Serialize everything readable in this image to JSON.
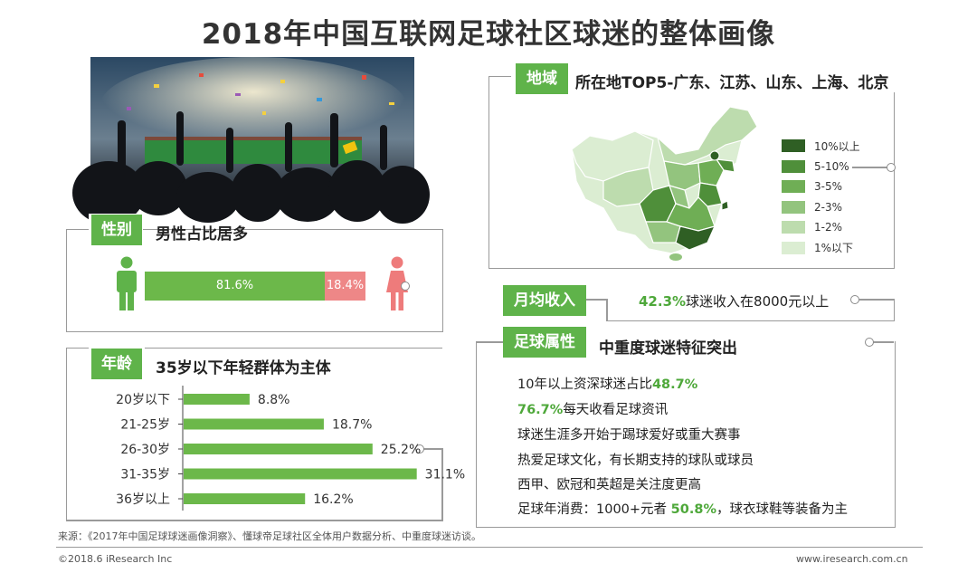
{
  "title": "2018年中国互联网足球社区球迷的整体画像",
  "colors": {
    "accent": "#5fb34a",
    "male_bar": "#6cb84a",
    "female_bar": "#ee8787",
    "highlight": "#4ea83a"
  },
  "gender": {
    "tag": "性别",
    "heading": "男性占比居多",
    "male_label": "81.6%",
    "female_label": "18.4%",
    "male_share": 81.6,
    "female_share": 18.4
  },
  "age": {
    "tag": "年龄",
    "heading": "35岁以下年轻群体为主体"
  },
  "region": {
    "tag": "地域",
    "heading": "所在地TOP5-广东、江苏、山东、上海、北京",
    "legend": [
      {
        "label": "10%以上",
        "color": "#2f5f24"
      },
      {
        "label": "5-10%",
        "color": "#4f8f3a"
      },
      {
        "label": "3-5%",
        "color": "#6fae55"
      },
      {
        "label": "2-3%",
        "color": "#93c47e"
      },
      {
        "label": "1-2%",
        "color": "#bddcae"
      },
      {
        "label": "1%以下",
        "color": "#dbedd2"
      }
    ]
  },
  "income": {
    "tag": "月均收入",
    "value": "42.3%",
    "text": "球迷收入在8000元以上"
  },
  "traits": {
    "tag": "足球属性",
    "heading": "中重度球迷特征突出",
    "line1_pre": "10年以上资深球迷占比",
    "line1_val": "48.7%",
    "line2_val": "76.7%",
    "line2_post": "每天收看足球资讯",
    "line3": "球迷生涯多开始于踢球爱好或重大赛事",
    "line4": "热爱足球文化，有长期支持的球队或球员",
    "line5": "西甲、欧冠和英超是关注度更高",
    "line6_pre": "足球年消费：1000+元者 ",
    "line6_val": "50.8%",
    "line6_post": "，球衣球鞋等装备为主"
  },
  "footer": {
    "source": "来源：《2017年中国足球球迷画像洞察》、懂球帝足球社区全体用户数据分析、中重度球迷访谈。",
    "copyright": "©2018.6 iResearch Inc",
    "website": "www.iresearch.com.cn"
  },
  "chart_data": {
    "type": "bar",
    "orientation": "horizontal",
    "title": "35岁以下年轻群体为主体",
    "categories": [
      "20岁以下",
      "21-25岁",
      "26-30岁",
      "31-35岁",
      "36岁以上"
    ],
    "values": [
      8.8,
      18.7,
      25.2,
      31.1,
      16.2
    ],
    "value_labels": [
      "8.8%",
      "18.7%",
      "25.2%",
      "31.1%",
      "16.2%"
    ],
    "xlim": [
      0,
      35
    ],
    "unit": "%"
  }
}
